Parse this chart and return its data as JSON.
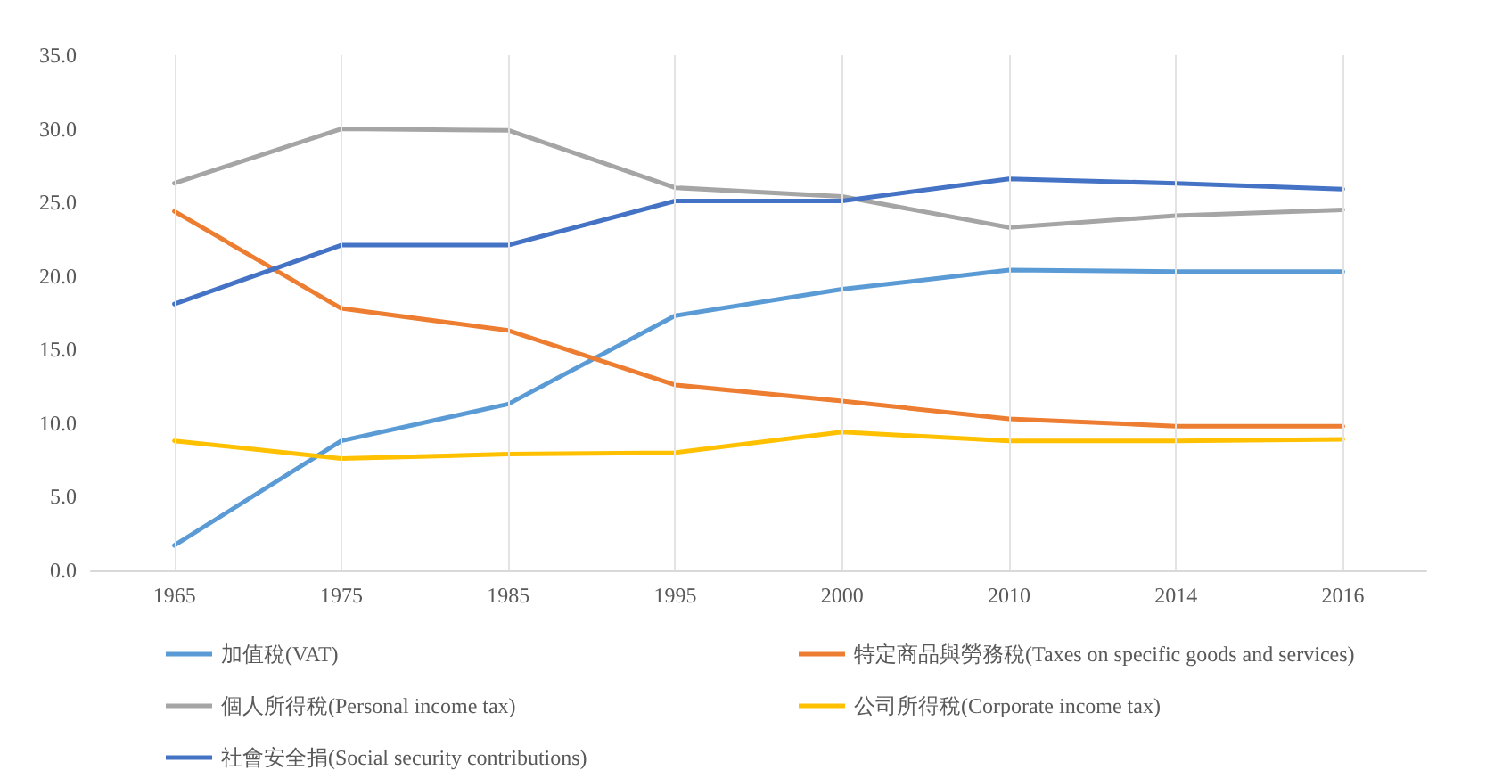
{
  "chart_data": {
    "type": "line",
    "categories": [
      "1965",
      "1975",
      "1985",
      "1995",
      "2000",
      "2010",
      "2014",
      "2016"
    ],
    "series": [
      {
        "name": "加值稅(VAT)",
        "color": "#5b9bd5",
        "values": [
          1.7,
          8.8,
          11.3,
          17.3,
          19.1,
          20.4,
          20.3,
          20.3
        ]
      },
      {
        "name": "特定商品與勞務稅(Taxes on specific goods and services)",
        "color": "#ed7d31",
        "values": [
          24.4,
          17.8,
          16.3,
          12.6,
          11.5,
          10.3,
          9.8,
          9.8
        ]
      },
      {
        "name": "個人所得稅(Personal income tax)",
        "color": "#a5a5a5",
        "values": [
          26.3,
          30.0,
          29.9,
          26.0,
          25.4,
          23.3,
          24.1,
          24.5
        ]
      },
      {
        "name": "公司所得稅(Corporate income tax)",
        "color": "#ffc000",
        "values": [
          8.8,
          7.6,
          7.9,
          8.0,
          9.4,
          8.8,
          8.8,
          8.9
        ]
      },
      {
        "name": "社會安全捐(Social security contributions)",
        "color": "#4472c4",
        "values": [
          18.1,
          22.1,
          22.1,
          25.1,
          25.1,
          26.6,
          26.3,
          25.9
        ]
      }
    ],
    "ylim": [
      0,
      35
    ],
    "yticks": [
      {
        "value": 0,
        "label": "0.0"
      },
      {
        "value": 5,
        "label": "5.0"
      },
      {
        "value": 10,
        "label": "10.0"
      },
      {
        "value": 15,
        "label": "15.0"
      },
      {
        "value": 20,
        "label": "20.0"
      },
      {
        "value": 25,
        "label": "25.0"
      },
      {
        "value": 30,
        "label": "30.0"
      },
      {
        "value": 35,
        "label": "35.0"
      }
    ],
    "grid": "x",
    "legend": "bottom",
    "marker": "none",
    "line_style": "solid"
  }
}
